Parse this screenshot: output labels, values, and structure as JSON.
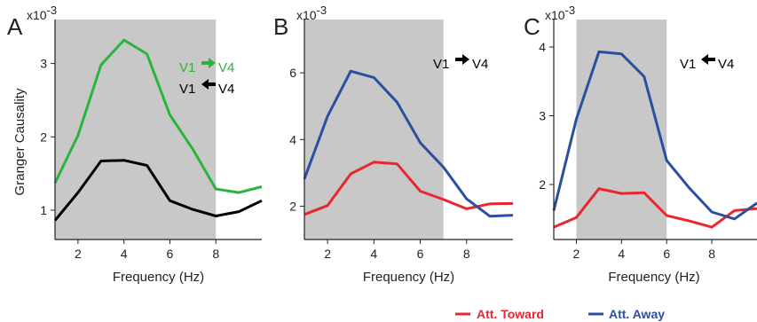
{
  "figure": {
    "legend": [
      {
        "label": "Att. Toward",
        "color": "#e8282e"
      },
      {
        "label": "Att. Away",
        "color": "#2b4fa0"
      }
    ]
  },
  "chart_data": [
    {
      "type": "line",
      "panel": "A",
      "xlabel": "Frequency (Hz)",
      "ylabel": "Granger Causality",
      "scale_label": "x10",
      "scale_exponent": "-3",
      "xlim": [
        1,
        10
      ],
      "ylim": [
        0.6,
        3.6
      ],
      "xticks": [
        2,
        4,
        6,
        8
      ],
      "yticks": [
        1,
        2,
        3
      ],
      "shaded_region": [
        1,
        8
      ],
      "shade_color": "#c8c8c8",
      "x": [
        1,
        2,
        3,
        4,
        5,
        6,
        7,
        8,
        9,
        10
      ],
      "series": [
        {
          "color": "#2ab53a",
          "values": [
            1.37,
            2.02,
            2.98,
            3.32,
            3.13,
            2.3,
            1.83,
            1.29,
            1.24,
            1.32
          ]
        },
        {
          "color": "#000000",
          "values": [
            0.86,
            1.24,
            1.67,
            1.68,
            1.61,
            1.13,
            1.01,
            0.92,
            0.98,
            1.13
          ]
        }
      ],
      "annotations": [
        {
          "from": "V1",
          "to": "V4",
          "direction": "right",
          "color": "#2ab53a"
        },
        {
          "from": "V1",
          "to": "V4",
          "direction": "left",
          "color": "#000000"
        }
      ]
    },
    {
      "type": "line",
      "panel": "B",
      "xlabel": "Frequency (Hz)",
      "scale_label": "x10",
      "scale_exponent": "-3",
      "xlim": [
        1,
        10
      ],
      "ylim": [
        1.0,
        7.6
      ],
      "xticks": [
        2,
        4,
        6,
        8
      ],
      "yticks": [
        2,
        4,
        6
      ],
      "shaded_region": [
        1,
        7
      ],
      "shade_color": "#c8c8c8",
      "x": [
        1,
        2,
        3,
        4,
        5,
        6,
        7,
        8,
        9,
        10
      ],
      "series": [
        {
          "name": "Att. Toward",
          "color": "#e8282e",
          "values": [
            1.75,
            2.02,
            2.97,
            3.32,
            3.27,
            2.45,
            2.2,
            1.92,
            2.07,
            2.08
          ]
        },
        {
          "name": "Att. Away",
          "color": "#2b4fa0",
          "values": [
            2.82,
            4.7,
            6.05,
            5.86,
            5.12,
            3.9,
            3.17,
            2.22,
            1.7,
            1.73
          ]
        }
      ],
      "annotations": [
        {
          "from": "V1",
          "to": "V4",
          "direction": "right",
          "color": "#000000"
        }
      ]
    },
    {
      "type": "line",
      "panel": "C",
      "xlabel": "Frequency (Hz)",
      "scale_label": "x10",
      "scale_exponent": "-3",
      "xlim": [
        1,
        10
      ],
      "ylim": [
        1.2,
        4.4
      ],
      "xticks": [
        2,
        4,
        6,
        8
      ],
      "yticks": [
        2,
        3,
        4
      ],
      "shaded_region": [
        2,
        6
      ],
      "shade_color": "#c8c8c8",
      "x": [
        1,
        2,
        3,
        4,
        5,
        6,
        7,
        8,
        9,
        10
      ],
      "series": [
        {
          "name": "Att. Toward",
          "color": "#e8282e",
          "values": [
            1.38,
            1.52,
            1.94,
            1.87,
            1.88,
            1.55,
            1.47,
            1.38,
            1.62,
            1.65
          ]
        },
        {
          "name": "Att. Away",
          "color": "#2b4fa0",
          "values": [
            1.62,
            2.95,
            3.93,
            3.9,
            3.57,
            2.35,
            1.95,
            1.6,
            1.5,
            1.73
          ]
        }
      ],
      "annotations": [
        {
          "from": "V1",
          "to": "V4",
          "direction": "left",
          "color": "#000000"
        }
      ]
    }
  ]
}
